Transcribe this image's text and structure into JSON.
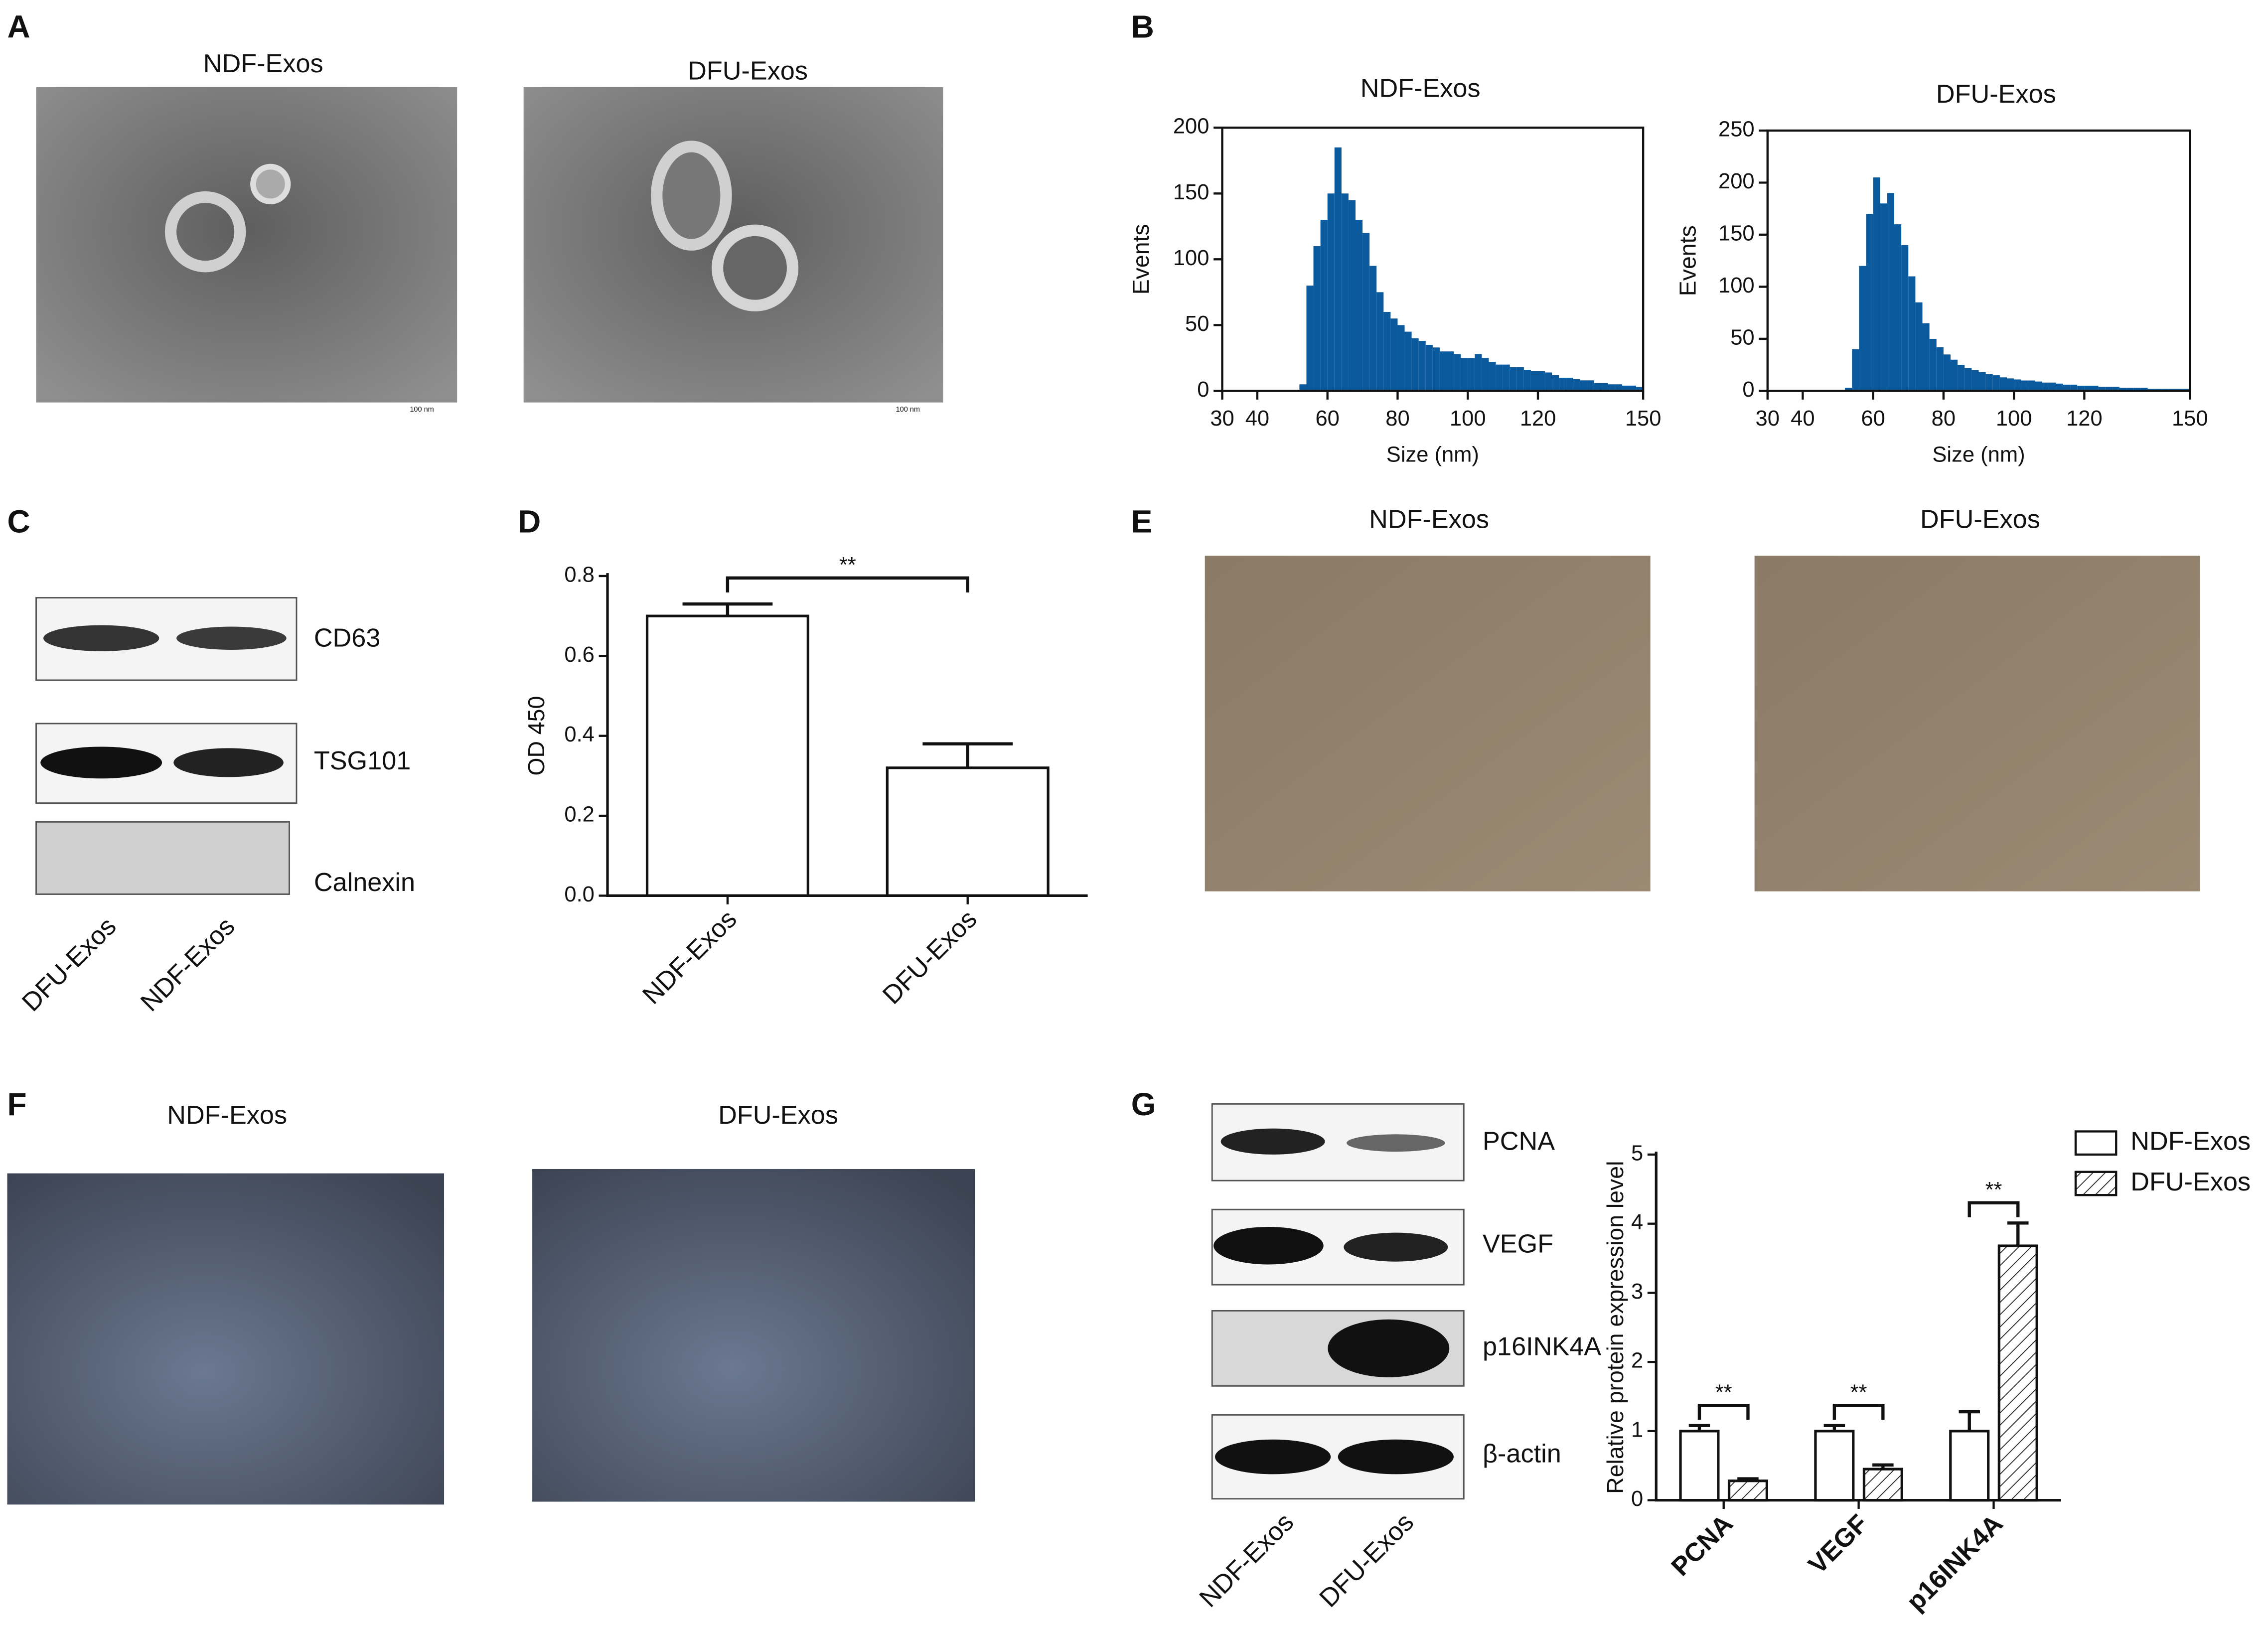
{
  "panels": {
    "letters": [
      "A",
      "B",
      "C",
      "D",
      "E",
      "F",
      "G"
    ]
  },
  "tem": {
    "titles": [
      "NDF-Exos",
      "DFU-Exos"
    ],
    "scale_label": "100 nm"
  },
  "blot_c": {
    "bands": [
      "CD63",
      "TSG101",
      "Calnexin"
    ],
    "lanes": [
      "DFU-Exos",
      "NDF-Exos"
    ]
  },
  "senescence": {
    "titles": [
      "NDF-Exos",
      "DFU-Exos"
    ]
  },
  "tube": {
    "titles": [
      "NDF-Exos",
      "DFU-Exos"
    ]
  },
  "blot_g": {
    "bands": [
      "PCNA",
      "VEGF",
      "p16INK4A",
      "β-actin"
    ],
    "lanes": [
      "NDF-Exos",
      "DFU-Exos"
    ]
  },
  "chart_data": [
    {
      "type": "histogram",
      "title": "NDF-Exos",
      "xlabel": "Size (nm)",
      "ylabel": "Events",
      "color": "#0b5a9e",
      "bins": [
        30,
        32,
        34,
        36,
        38,
        40,
        42,
        44,
        46,
        48,
        50,
        52,
        54,
        56,
        58,
        60,
        62,
        64,
        66,
        68,
        70,
        72,
        74,
        76,
        78,
        80,
        82,
        84,
        86,
        88,
        90,
        92,
        94,
        96,
        98,
        100,
        102,
        104,
        106,
        108,
        110,
        112,
        114,
        116,
        118,
        120,
        122,
        124,
        126,
        128,
        130,
        132,
        134,
        136,
        138,
        140,
        142,
        144,
        146,
        148,
        150
      ],
      "values": [
        0,
        0,
        0,
        0,
        0,
        0,
        0,
        0,
        0,
        0,
        0,
        5,
        80,
        110,
        130,
        150,
        185,
        150,
        145,
        130,
        120,
        95,
        75,
        60,
        55,
        50,
        45,
        40,
        38,
        35,
        33,
        30,
        30,
        28,
        25,
        25,
        28,
        25,
        22,
        20,
        20,
        18,
        18,
        16,
        15,
        15,
        14,
        12,
        10,
        10,
        9,
        8,
        8,
        6,
        6,
        5,
        5,
        4,
        4,
        3
      ],
      "xlim": [
        30,
        150
      ],
      "xticks": [
        30,
        40,
        60,
        80,
        100,
        120,
        150
      ],
      "ylim": [
        0,
        200
      ],
      "yticks": [
        0,
        50,
        100,
        150,
        200
      ]
    },
    {
      "type": "histogram",
      "title": "DFU-Exos",
      "xlabel": "Size (nm)",
      "ylabel": "Events",
      "color": "#0b5a9e",
      "bins": [
        30,
        32,
        34,
        36,
        38,
        40,
        42,
        44,
        46,
        48,
        50,
        52,
        54,
        56,
        58,
        60,
        62,
        64,
        66,
        68,
        70,
        72,
        74,
        76,
        78,
        80,
        82,
        84,
        86,
        88,
        90,
        92,
        94,
        96,
        98,
        100,
        102,
        104,
        106,
        108,
        110,
        112,
        114,
        116,
        118,
        120,
        122,
        124,
        126,
        128,
        130,
        132,
        134,
        136,
        138,
        140,
        142,
        144,
        146,
        148,
        150
      ],
      "values": [
        0,
        0,
        0,
        0,
        0,
        0,
        0,
        0,
        0,
        0,
        0,
        3,
        40,
        120,
        170,
        205,
        180,
        190,
        160,
        140,
        110,
        85,
        65,
        50,
        42,
        35,
        30,
        25,
        22,
        20,
        18,
        16,
        15,
        13,
        12,
        11,
        10,
        10,
        9,
        8,
        8,
        7,
        6,
        6,
        5,
        5,
        5,
        4,
        4,
        4,
        3,
        3,
        3,
        3,
        2,
        2,
        2,
        2,
        2,
        2
      ],
      "xlim": [
        30,
        150
      ],
      "xticks": [
        30,
        40,
        60,
        80,
        100,
        120,
        150
      ],
      "ylim": [
        0,
        250
      ],
      "yticks": [
        0,
        50,
        100,
        150,
        200,
        250
      ]
    },
    {
      "type": "bar",
      "ylabel": "OD 450",
      "color": "#ffffff",
      "categories": [
        "NDF-Exos",
        "DFU-Exos"
      ],
      "values": [
        0.7,
        0.32
      ],
      "errors": [
        0.03,
        0.06
      ],
      "annotations": [
        "**"
      ],
      "ylim": [
        0,
        0.8
      ],
      "yticks": [
        {
          "value": 0,
          "label": "0.0"
        },
        0.2,
        0.4,
        0.6,
        0.8
      ]
    },
    {
      "type": "bar",
      "ylabel": "Relative protein expression level",
      "categories": [
        "PCNA",
        "VEGF",
        "p16INK4A"
      ],
      "series": [
        {
          "name": "NDF-Exos",
          "color": "#ffffff",
          "values": [
            1.0,
            1.0,
            1.0
          ],
          "errors": [
            0.08,
            0.08,
            0.28
          ]
        },
        {
          "name": "DFU-Exos",
          "color": "#ffffff",
          "hatch": true,
          "values": [
            0.28,
            0.45,
            3.68
          ],
          "errors": [
            0.03,
            0.06,
            0.33
          ]
        }
      ],
      "annotations": [
        "**",
        "**",
        "**"
      ],
      "legend": "upper right",
      "ylim": [
        0,
        5
      ],
      "yticks": [
        0,
        1,
        2,
        3,
        4,
        5
      ]
    }
  ]
}
